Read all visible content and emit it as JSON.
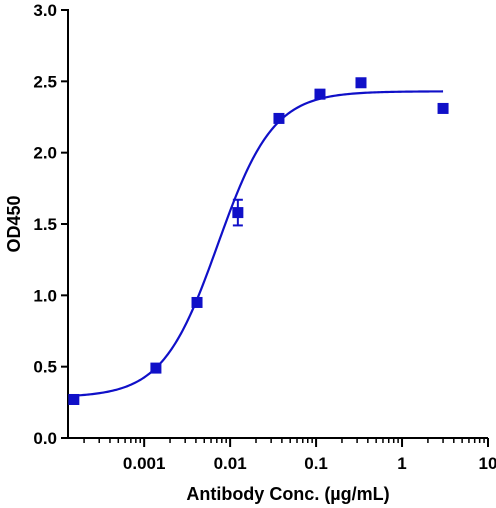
{
  "chart_data": {
    "type": "scatter",
    "title": "",
    "xlabel": "Antibody Conc. (µg/mL)",
    "ylabel": "OD450",
    "x_scale": "log",
    "xlim": [
      0.00013,
      10
    ],
    "ylim": [
      0,
      3.0
    ],
    "x_ticks": [
      0.001,
      0.01,
      0.1,
      1,
      10
    ],
    "x_tick_labels": [
      "0.001",
      "0.01",
      "0.1",
      "1",
      "10"
    ],
    "y_ticks": [
      0,
      0.5,
      1.0,
      1.5,
      2.0,
      2.5,
      3.0
    ],
    "y_tick_labels": [
      "0.0",
      "0.5",
      "1.0",
      "1.5",
      "2.0",
      "2.5",
      "3.0"
    ],
    "grid": false,
    "color": "#1010c8",
    "series": [
      {
        "points": [
          {
            "x": 0.000152,
            "y": 0.27,
            "err": 0.03
          },
          {
            "x": 0.00137,
            "y": 0.49,
            "err": 0.0
          },
          {
            "x": 0.00412,
            "y": 0.95,
            "err": 0.0
          },
          {
            "x": 0.0123,
            "y": 1.58,
            "err": 0.09
          },
          {
            "x": 0.037,
            "y": 2.24,
            "err": 0.0
          },
          {
            "x": 0.111,
            "y": 2.41,
            "err": 0.03
          },
          {
            "x": 0.333,
            "y": 2.49,
            "err": 0.0
          },
          {
            "x": 3.0,
            "y": 2.31,
            "err": 0.0
          }
        ],
        "fit": {
          "model": "4PL",
          "bottom": 0.285,
          "top": 2.43,
          "ec50": 0.0072,
          "hill": 1.35
        }
      }
    ]
  }
}
